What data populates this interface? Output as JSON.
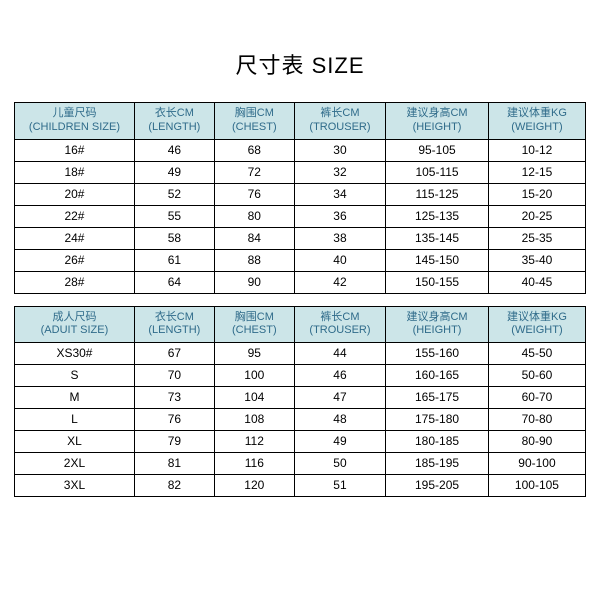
{
  "title": "尺寸表 SIZE",
  "colors": {
    "header_bg": "#cce5e8",
    "header_text": "#2f6b8a",
    "border": "#000000",
    "page_bg": "#ffffff"
  },
  "children_table": {
    "columns": [
      {
        "cn": "儿童尺码",
        "en": "(CHILDREN SIZE)"
      },
      {
        "cn": "衣长CM",
        "en": "(LENGTH)"
      },
      {
        "cn": "胸围CM",
        "en": "(CHEST)"
      },
      {
        "cn": "裤长CM",
        "en": "(TROUSER)"
      },
      {
        "cn": "建议身高CM",
        "en": "(HEIGHT)"
      },
      {
        "cn": "建议体重KG",
        "en": "(WEIGHT)"
      }
    ],
    "rows": [
      [
        "16#",
        "46",
        "68",
        "30",
        "95-105",
        "10-12"
      ],
      [
        "18#",
        "49",
        "72",
        "32",
        "105-115",
        "12-15"
      ],
      [
        "20#",
        "52",
        "76",
        "34",
        "115-125",
        "15-20"
      ],
      [
        "22#",
        "55",
        "80",
        "36",
        "125-135",
        "20-25"
      ],
      [
        "24#",
        "58",
        "84",
        "38",
        "135-145",
        "25-35"
      ],
      [
        "26#",
        "61",
        "88",
        "40",
        "145-150",
        "35-40"
      ],
      [
        "28#",
        "64",
        "90",
        "42",
        "150-155",
        "40-45"
      ]
    ]
  },
  "adult_table": {
    "columns": [
      {
        "cn": "成人尺码",
        "en": "(ADUIT SIZE)"
      },
      {
        "cn": "衣长CM",
        "en": "(LENGTH)"
      },
      {
        "cn": "胸围CM",
        "en": "(CHEST)"
      },
      {
        "cn": "裤长CM",
        "en": "(TROUSER)"
      },
      {
        "cn": "建议身高CM",
        "en": "(HEIGHT)"
      },
      {
        "cn": "建议体重KG",
        "en": "(WEIGHT)"
      }
    ],
    "rows": [
      [
        "XS30#",
        "67",
        "95",
        "44",
        "155-160",
        "45-50"
      ],
      [
        "S",
        "70",
        "100",
        "46",
        "160-165",
        "50-60"
      ],
      [
        "M",
        "73",
        "104",
        "47",
        "165-175",
        "60-70"
      ],
      [
        "L",
        "76",
        "108",
        "48",
        "175-180",
        "70-80"
      ],
      [
        "XL",
        "79",
        "112",
        "49",
        "180-185",
        "80-90"
      ],
      [
        "2XL",
        "81",
        "116",
        "50",
        "185-195",
        "90-100"
      ],
      [
        "3XL",
        "82",
        "120",
        "51",
        "195-205",
        "100-105"
      ]
    ]
  }
}
